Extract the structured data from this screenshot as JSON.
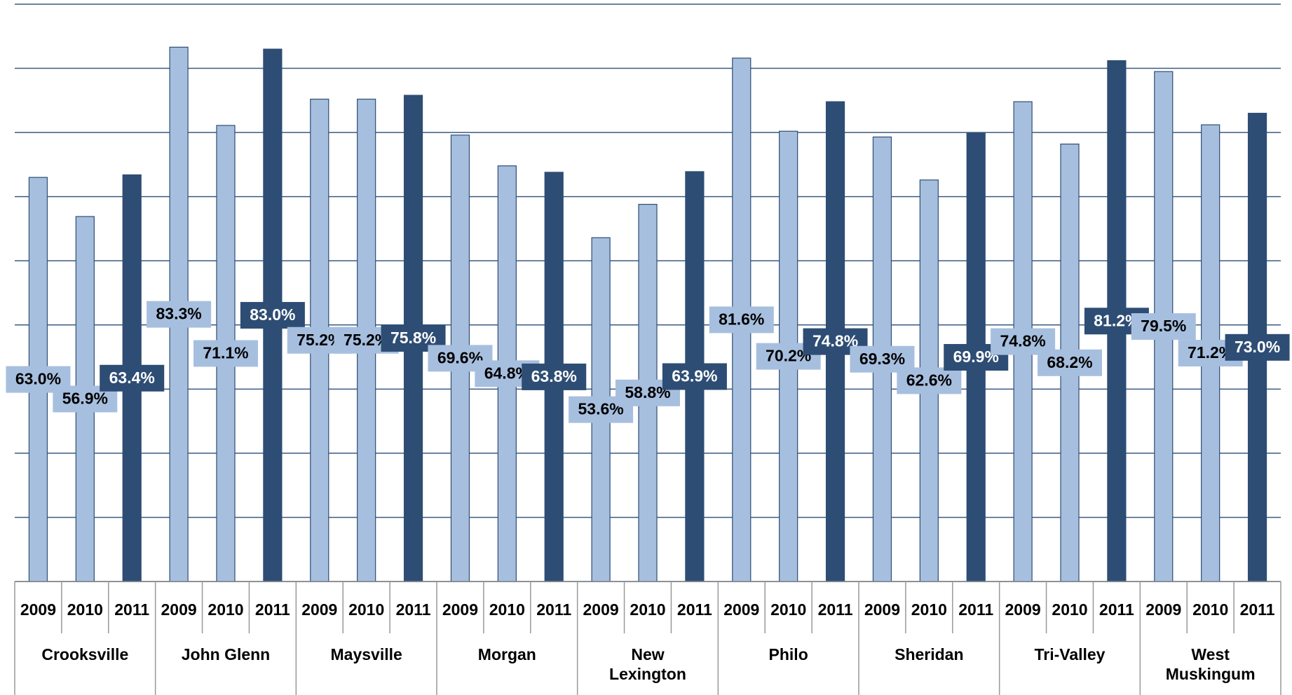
{
  "chart_data": {
    "type": "bar",
    "categories": [
      "Crooksville",
      "John Glenn",
      "Maysville",
      "Morgan",
      "New Lexington",
      "Philo",
      "Sheridan",
      "Tri-Valley",
      "West Muskingum"
    ],
    "series": [
      {
        "name": "2009",
        "color": "#a7bfdf",
        "values": [
          63.0,
          83.3,
          75.2,
          69.6,
          53.6,
          81.6,
          69.3,
          74.8,
          79.5
        ],
        "value_labels": [
          "63.0%",
          "83.3%",
          "75.2%",
          "69.6%",
          "53.6%",
          "81.6%",
          "69.3%",
          "74.8%",
          "79.5%"
        ]
      },
      {
        "name": "2010",
        "color": "#a7bfdf",
        "values": [
          56.9,
          71.1,
          75.2,
          64.8,
          58.8,
          70.2,
          62.6,
          68.2,
          71.2
        ],
        "value_labels": [
          "56.9%",
          "71.1%",
          "75.2%",
          "64.8%",
          "58.8%",
          "70.2%",
          "62.6%",
          "68.2%",
          "71.2%"
        ]
      },
      {
        "name": "2011",
        "color": "#2e4d74",
        "values": [
          63.4,
          83.0,
          75.8,
          63.8,
          63.9,
          74.8,
          69.9,
          81.2,
          73.0
        ],
        "value_labels": [
          "63.4%",
          "83.0%",
          "75.8%",
          "63.8%",
          "63.9%",
          "74.8%",
          "69.9%",
          "81.2%",
          "73.0%"
        ]
      }
    ],
    "ylim": [
      0,
      90
    ],
    "yticks": [
      0,
      10,
      20,
      30,
      40,
      50,
      60,
      70,
      80,
      90
    ],
    "grid": true
  }
}
